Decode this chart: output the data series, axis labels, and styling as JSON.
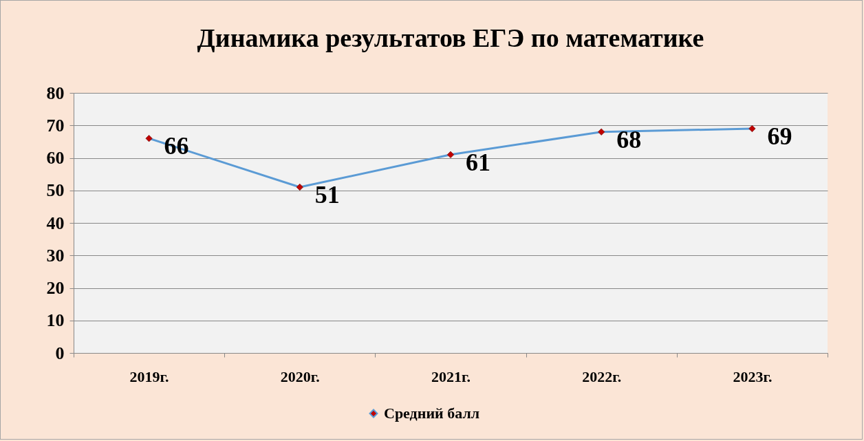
{
  "chart_data": {
    "type": "line",
    "title": "Динамика результатов ЕГЭ по математике",
    "categories": [
      "2019г.",
      "2020г.",
      "2021г.",
      "2022г.",
      "2023г."
    ],
    "series": [
      {
        "name": "Средний балл",
        "color": "#5b9bd5",
        "values": [
          66,
          51,
          61,
          68,
          69
        ]
      }
    ],
    "ylim": [
      0,
      80
    ],
    "yticks": [
      0,
      10,
      20,
      30,
      40,
      50,
      60,
      70,
      80
    ],
    "grid": "y",
    "legend": "bottom",
    "marker": "diamond",
    "data_labels": true
  }
}
